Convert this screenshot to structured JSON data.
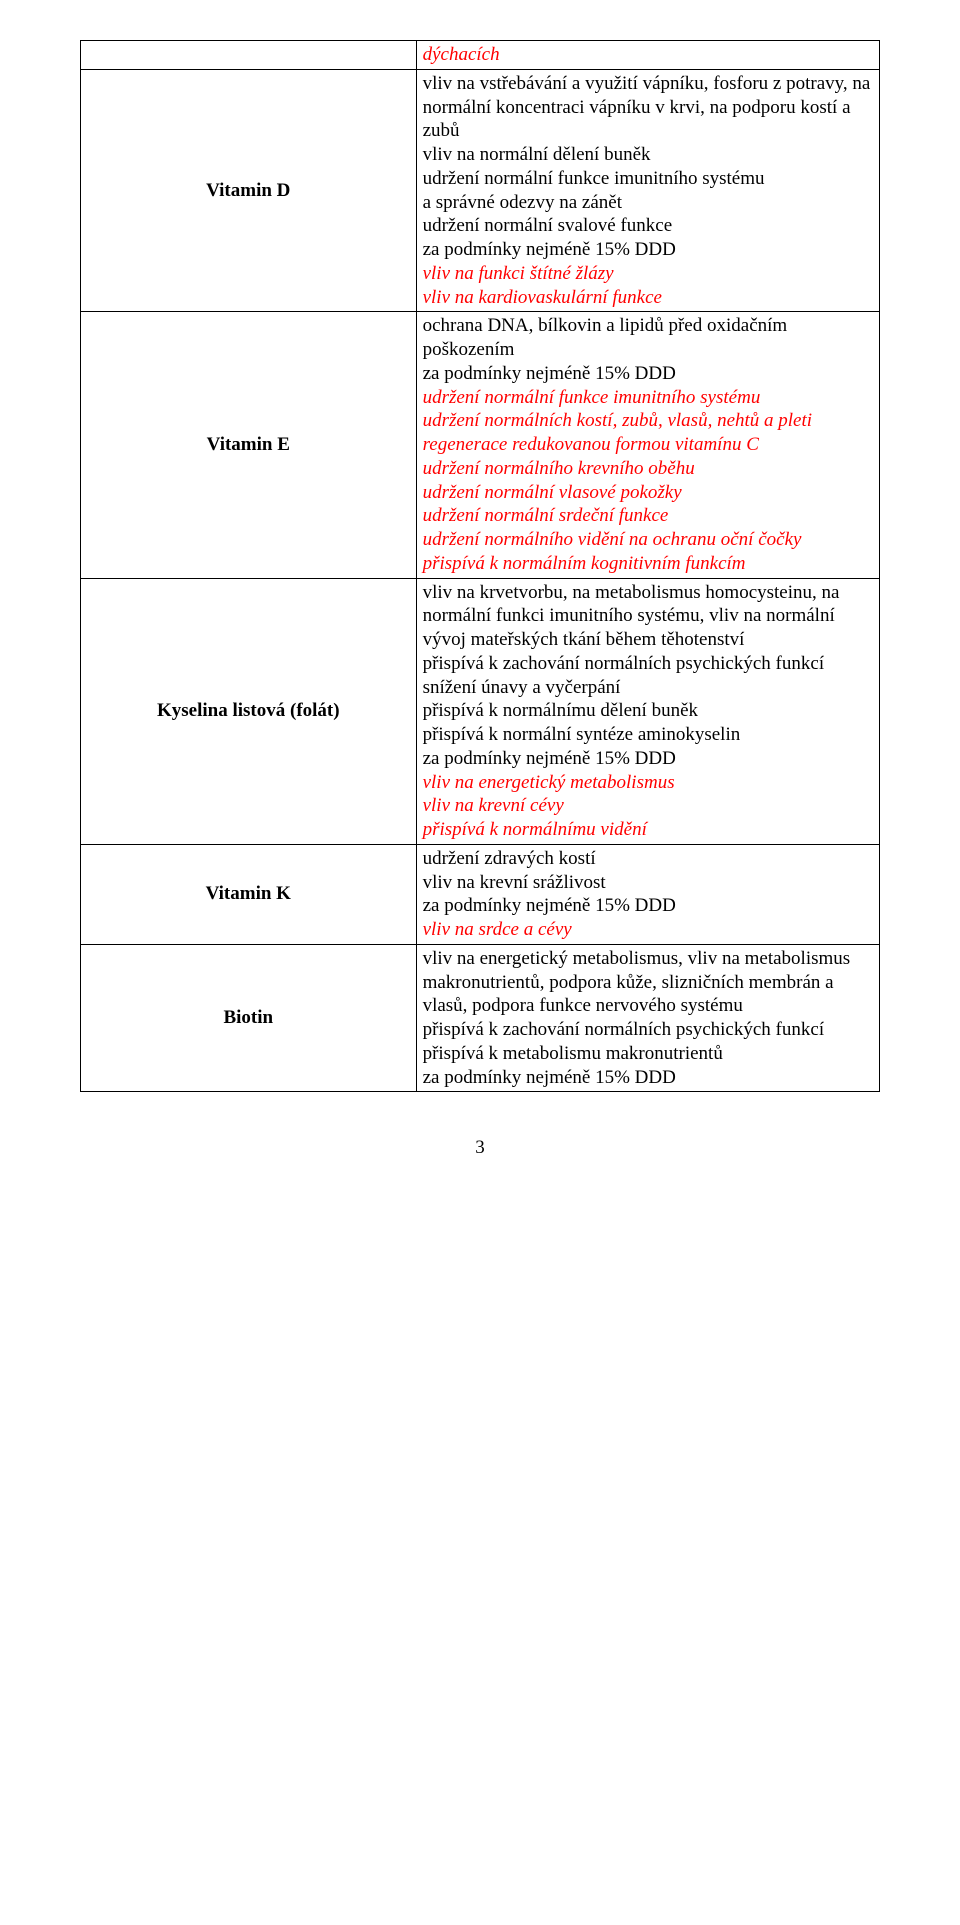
{
  "rows": [
    {
      "label": "",
      "content": [
        {
          "text": "dýchacích",
          "red": true,
          "italic": true
        }
      ]
    },
    {
      "label": "Vitamin D",
      "content": [
        {
          "text": "vliv na vstřebávání a využití vápníku, fosforu z potravy, na normální koncentraci vápníku v krvi, na podporu kostí a zubů"
        },
        {
          "text": "vliv na normální dělení buněk"
        },
        {
          "text": "udržení normální funkce imunitního systému"
        },
        {
          "text": "a správné odezvy na zánět"
        },
        {
          "text": "udržení normální svalové funkce"
        },
        {
          "text": "za podmínky nejméně 15% DDD"
        },
        {
          "text": "vliv na funkci štítné žlázy",
          "red": true,
          "italic": true
        },
        {
          "text": "vliv na kardiovaskulární  funkce",
          "red": true,
          "italic": true
        }
      ]
    },
    {
      "label": "Vitamin E",
      "content": [
        {
          "text": "ochrana DNA, bílkovin a lipidů před oxidačním poškozením"
        },
        {
          "text": "za podmínky nejméně 15% DDD"
        },
        {
          "text": "udržení normální funkce imunitního systému",
          "red": true,
          "italic": true
        },
        {
          "text": "udržení normálních kostí, zubů, vlasů, nehtů a pleti",
          "red": true,
          "italic": true
        },
        {
          "text": "regenerace redukovanou formou vitamínu C",
          "red": true,
          "italic": true
        },
        {
          "text": "udržení normálního krevního oběhu",
          "red": true,
          "italic": true
        },
        {
          "text": "udržení normální vlasové pokožky",
          "red": true,
          "italic": true
        },
        {
          "text": "udržení normální srdeční funkce",
          "red": true,
          "italic": true
        },
        {
          "text": "udržení normálního vidění na ochranu oční čočky",
          "red": true,
          "italic": true
        },
        {
          "text": "přispívá k normálním kognitivním funkcím",
          "red": true,
          "italic": true
        }
      ]
    },
    {
      "label": "Kyselina listová (folát)",
      "content": [
        {
          "text": "vliv na krvetvorbu, na metabolismus homocysteinu, na normální funkci imunitního systému, vliv na normální vývoj mateřských tkání během těhotenství"
        },
        {
          "text": "přispívá k zachování normálních psychických funkcí"
        },
        {
          "text": "snížení únavy a vyčerpání"
        },
        {
          "text": "přispívá k normálnímu dělení buněk"
        },
        {
          "text": "přispívá k normální syntéze aminokyselin"
        },
        {
          "text": "za podmínky nejméně 15% DDD"
        },
        {
          "text": "vliv na energetický metabolismus",
          "red": true,
          "italic": true
        },
        {
          "text": "vliv na krevní cévy",
          "red": true,
          "italic": true
        },
        {
          "text": "přispívá k normálnímu vidění",
          "red": true,
          "italic": true
        }
      ]
    },
    {
      "label": "Vitamin K",
      "content": [
        {
          "text": "udržení zdravých kostí"
        },
        {
          "text": "vliv na krevní srážlivost"
        },
        {
          "text": "za podmínky nejméně 15% DDD"
        },
        {
          "text": "vliv na srdce a cévy",
          "red": true,
          "italic": true
        }
      ]
    },
    {
      "label": "Biotin",
      "content": [
        {
          "text": "vliv na energetický metabolismus, vliv na metabolismus makronutrientů, podpora kůže,  slizničních membrán a vlasů, podpora funkce nervového systému"
        },
        {
          "text": "přispívá k zachování normálních psychických funkcí"
        },
        {
          "text": "přispívá k metabolismu makronutrientů"
        },
        {
          "text": "za podmínky nejméně 15% DDD"
        }
      ]
    }
  ],
  "page_number": "3"
}
